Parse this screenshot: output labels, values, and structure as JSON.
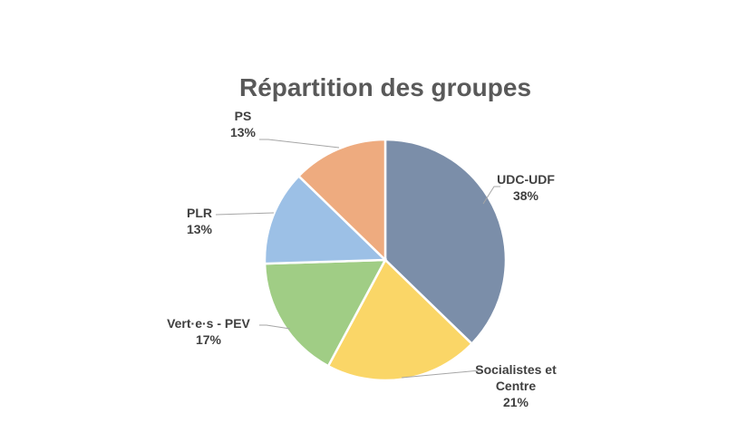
{
  "chart_data": {
    "type": "pie",
    "title": "Répartition des groupes",
    "slices": [
      {
        "label": [
          "UDC-UDF"
        ],
        "percent_label": "38%",
        "value": 38,
        "color": "#7b8ea9"
      },
      {
        "label": [
          "Socialistes et",
          "Centre"
        ],
        "percent_label": "21%",
        "value": 21,
        "color": "#fad667"
      },
      {
        "label": [
          "Vert·e·s - PEV"
        ],
        "percent_label": "17%",
        "value": 17,
        "color": "#a0cd85"
      },
      {
        "label": [
          "PLR"
        ],
        "percent_label": "13%",
        "value": 13,
        "color": "#9cc0e6"
      },
      {
        "label": [
          "PS"
        ],
        "percent_label": "13%",
        "value": 13,
        "color": "#eeab7f"
      }
    ],
    "start_angle": "12 o'clock",
    "direction": "clockwise",
    "legend": "none",
    "label_position": "outside with leader lines",
    "leader_line_color": "#a6a6a6"
  }
}
